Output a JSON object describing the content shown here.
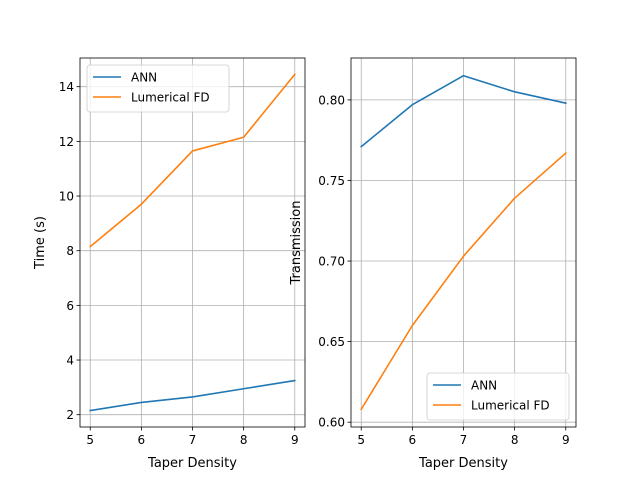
{
  "chart_data": [
    {
      "type": "line",
      "title": "",
      "xlabel": "Taper Density",
      "ylabel": "Time (s)",
      "x": [
        5,
        6,
        7,
        8,
        9
      ],
      "xticks": [
        "5",
        "6",
        "7",
        "8",
        "9"
      ],
      "yticks": [
        "2",
        "4",
        "6",
        "8",
        "10",
        "12",
        "14"
      ],
      "xlim": [
        4.8,
        9.2
      ],
      "ylim": [
        1.55,
        15.05
      ],
      "grid": true,
      "legend_position": "top-left",
      "series": [
        {
          "name": "ANN",
          "color": "#1f77b4",
          "values": [
            2.15,
            2.45,
            2.65,
            2.95,
            3.25
          ]
        },
        {
          "name": "Lumerical FD",
          "color": "#ff7f0e",
          "values": [
            8.15,
            9.7,
            11.65,
            12.15,
            14.45
          ]
        }
      ]
    },
    {
      "type": "line",
      "title": "",
      "xlabel": "Taper Density",
      "ylabel": "Transmission",
      "x": [
        5,
        6,
        7,
        8,
        9
      ],
      "xticks": [
        "5",
        "6",
        "7",
        "8",
        "9"
      ],
      "yticks": [
        "0.60",
        "0.65",
        "0.70",
        "0.75",
        "0.80"
      ],
      "xlim": [
        4.8,
        9.2
      ],
      "ylim": [
        0.597,
        0.826
      ],
      "grid": true,
      "legend_position": "bottom-right",
      "series": [
        {
          "name": "ANN",
          "color": "#1f77b4",
          "values": [
            0.771,
            0.797,
            0.815,
            0.805,
            0.798
          ]
        },
        {
          "name": "Lumerical FD",
          "color": "#ff7f0e",
          "values": [
            0.608,
            0.66,
            0.703,
            0.739,
            0.767
          ]
        }
      ]
    }
  ]
}
